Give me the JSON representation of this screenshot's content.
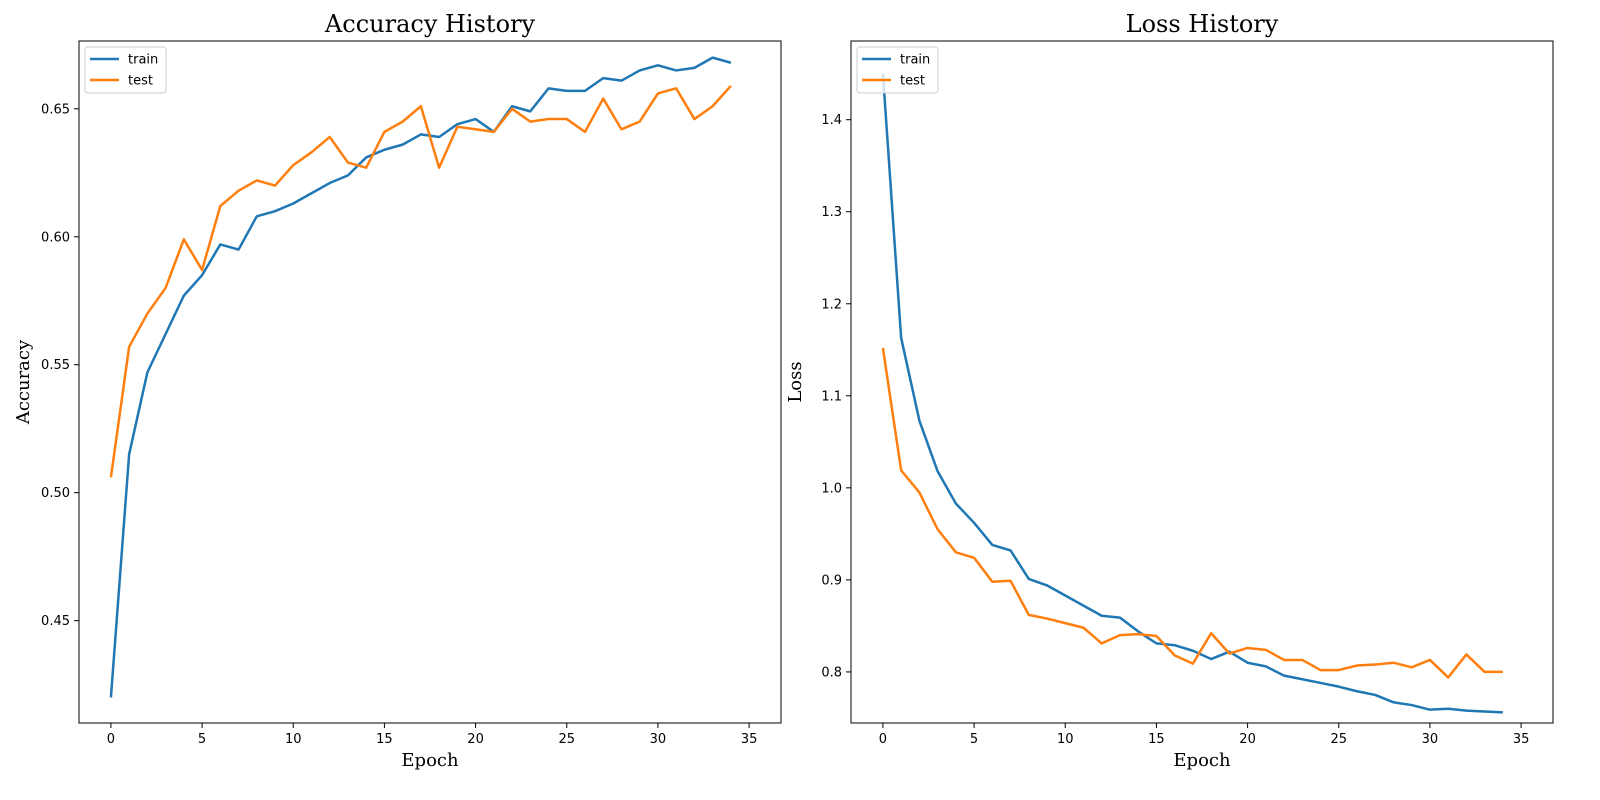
{
  "chart_data": [
    {
      "type": "line",
      "title": "Accuracy History",
      "xlabel": "Epoch",
      "ylabel": "Accuracy",
      "xlim": [
        -1.75,
        36.75
      ],
      "ylim": [
        0.41,
        0.6765
      ],
      "xticks": [
        0,
        5,
        10,
        15,
        20,
        25,
        30,
        35
      ],
      "yticks": [
        0.45,
        0.5,
        0.55,
        0.6,
        0.65
      ],
      "ytick_labels": [
        "0.45",
        "0.50",
        "0.55",
        "0.60",
        "0.65"
      ],
      "legend": "upper left",
      "grid": false,
      "x": [
        0,
        1,
        2,
        3,
        4,
        5,
        6,
        7,
        8,
        9,
        10,
        11,
        12,
        13,
        14,
        15,
        16,
        17,
        18,
        19,
        20,
        21,
        22,
        23,
        24,
        25,
        26,
        27,
        28,
        29,
        30,
        31,
        32,
        33,
        34
      ],
      "series": [
        {
          "name": "train",
          "color": "#1f77b4",
          "values": [
            0.42,
            0.515,
            0.547,
            0.562,
            0.577,
            0.585,
            0.597,
            0.595,
            0.608,
            0.61,
            0.613,
            0.617,
            0.621,
            0.624,
            0.631,
            0.634,
            0.636,
            0.64,
            0.639,
            0.644,
            0.646,
            0.641,
            0.651,
            0.649,
            0.658,
            0.657,
            0.657,
            0.662,
            0.661,
            0.665,
            0.667,
            0.665,
            0.666,
            0.67,
            0.668
          ]
        },
        {
          "name": "test",
          "color": "#ff7f0e",
          "values": [
            0.506,
            0.557,
            0.57,
            0.58,
            0.599,
            0.587,
            0.612,
            0.618,
            0.622,
            0.62,
            0.628,
            0.633,
            0.639,
            0.629,
            0.627,
            0.641,
            0.645,
            0.651,
            0.627,
            0.643,
            0.642,
            0.641,
            0.65,
            0.645,
            0.646,
            0.646,
            0.641,
            0.654,
            0.642,
            0.645,
            0.656,
            0.658,
            0.646,
            0.651,
            0.659
          ]
        }
      ]
    },
    {
      "type": "line",
      "title": "Loss History",
      "xlabel": "Epoch",
      "ylabel": "Loss",
      "xlim": [
        -1.75,
        36.75
      ],
      "ylim": [
        0.7445,
        1.4855
      ],
      "xticks": [
        0,
        5,
        10,
        15,
        20,
        25,
        30,
        35
      ],
      "yticks": [
        0.8,
        0.9,
        1.0,
        1.1,
        1.2,
        1.3,
        1.4
      ],
      "ytick_labels": [
        "0.8",
        "0.9",
        "1.0",
        "1.1",
        "1.2",
        "1.3",
        "1.4"
      ],
      "legend": "upper left",
      "grid": false,
      "x": [
        0,
        1,
        2,
        3,
        4,
        5,
        6,
        7,
        8,
        9,
        10,
        11,
        12,
        13,
        14,
        15,
        16,
        17,
        18,
        19,
        20,
        21,
        22,
        23,
        24,
        25,
        26,
        27,
        28,
        29,
        30,
        31,
        32,
        33,
        34
      ],
      "series": [
        {
          "name": "train",
          "color": "#1f77b4",
          "values": [
            1.45,
            1.163,
            1.073,
            1.018,
            0.983,
            0.962,
            0.938,
            0.932,
            0.901,
            0.894,
            0.883,
            0.872,
            0.861,
            0.859,
            0.844,
            0.831,
            0.829,
            0.823,
            0.814,
            0.822,
            0.81,
            0.806,
            0.796,
            0.792,
            0.788,
            0.784,
            0.779,
            0.775,
            0.767,
            0.764,
            0.759,
            0.76,
            0.758,
            0.757,
            0.756
          ]
        },
        {
          "name": "test",
          "color": "#ff7f0e",
          "values": [
            1.152,
            1.019,
            0.995,
            0.955,
            0.93,
            0.924,
            0.898,
            0.899,
            0.862,
            0.858,
            0.853,
            0.848,
            0.831,
            0.84,
            0.841,
            0.839,
            0.818,
            0.809,
            0.842,
            0.82,
            0.826,
            0.824,
            0.813,
            0.813,
            0.802,
            0.802,
            0.807,
            0.808,
            0.81,
            0.805,
            0.813,
            0.794,
            0.819,
            0.8,
            0.8
          ]
        }
      ]
    }
  ]
}
